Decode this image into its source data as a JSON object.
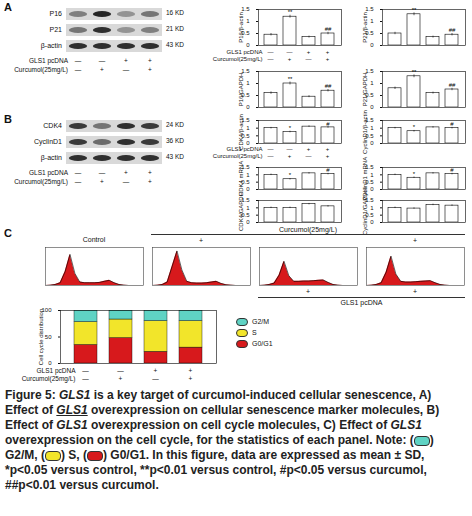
{
  "chart_data": [
    {
      "type": "bar",
      "y_label": "P16/β-actin",
      "categories": [
        null,
        null,
        null,
        null
      ],
      "values": [
        0.45,
        1.2,
        0.35,
        0.5
      ],
      "errors": [
        0.05,
        0.06,
        0.04,
        0.05
      ],
      "annotations": [
        null,
        "**",
        null,
        "##"
      ],
      "color": "#ffffff",
      "ylim": [
        0,
        1.5
      ],
      "yticks": [
        0,
        0.5,
        1,
        1.5
      ],
      "tick_labels": "y"
    },
    {
      "type": "bar",
      "y_label": "P21/β-actin",
      "categories": [
        null,
        null,
        null,
        null
      ],
      "values": [
        0.5,
        1.3,
        0.35,
        0.45
      ],
      "errors": [
        0.05,
        0.06,
        0.04,
        0.05
      ],
      "annotations": [
        null,
        "**",
        null,
        "##"
      ],
      "color": "#ffffff",
      "ylim": [
        0,
        1.5
      ],
      "yticks": [
        0,
        0.5,
        1,
        1.5
      ],
      "tick_labels": "y"
    },
    {
      "type": "bar",
      "y_label": "P16/GAPDH",
      "categories": [
        null,
        null,
        null,
        null
      ],
      "values": [
        0.6,
        1.0,
        0.45,
        0.7
      ],
      "errors": [
        0.05,
        0.06,
        0.04,
        0.05
      ],
      "annotations": [
        null,
        "**",
        null,
        "##"
      ],
      "color": "#ffffff",
      "ylim": [
        0,
        1.5
      ],
      "yticks": [
        0,
        0.5,
        1,
        1.5
      ],
      "tick_labels": "y"
    },
    {
      "type": "bar",
      "y_label": "P21/GAPDH",
      "categories": [
        null,
        null,
        null,
        null
      ],
      "values": [
        0.8,
        1.3,
        0.6,
        0.75
      ],
      "errors": [
        0.05,
        0.06,
        0.04,
        0.05
      ],
      "annotations": [
        null,
        "**",
        null,
        "##"
      ],
      "color": "#ffffff",
      "ylim": [
        0,
        1.5
      ],
      "yticks": [
        0,
        0.5,
        1,
        1.5
      ],
      "tick_labels": "y"
    },
    {
      "type": "bar",
      "y_label": "CDK4/β-actin",
      "categories": [
        null,
        null,
        null,
        null
      ],
      "values": [
        1.0,
        0.75,
        1.1,
        1.05
      ],
      "errors": [
        0.05,
        0.05,
        0.05,
        0.05
      ],
      "annotations": [
        null,
        "*",
        null,
        "#"
      ],
      "color": "#ffffff",
      "ylim": [
        0,
        1.5
      ],
      "yticks": [
        0,
        0.5,
        1,
        1.5
      ],
      "tick_labels": "y"
    },
    {
      "type": "bar",
      "y_label": "CyclinD1/β-actin",
      "categories": [
        null,
        null,
        null,
        null
      ],
      "values": [
        1.0,
        0.8,
        1.05,
        1.0
      ],
      "errors": [
        0.05,
        0.05,
        0.05,
        0.05
      ],
      "annotations": [
        null,
        "*",
        null,
        "#"
      ],
      "color": "#ffffff",
      "ylim": [
        0,
        1.5
      ],
      "yticks": [
        0,
        0.5,
        1,
        1.5
      ],
      "tick_labels": "y"
    },
    {
      "type": "bar",
      "y_label": "CDK4 mRNA",
      "categories": [
        null,
        null,
        null,
        null
      ],
      "values": [
        1.0,
        0.7,
        1.1,
        1.05
      ],
      "errors": [
        0.05,
        0.05,
        0.05,
        0.05
      ],
      "annotations": [
        null,
        "*",
        null,
        "#"
      ],
      "color": "#ffffff",
      "ylim": [
        0,
        1.5
      ],
      "yticks": [
        0,
        0.5,
        1,
        1.5
      ],
      "tick_labels": "y"
    },
    {
      "type": "bar",
      "y_label": "CyclinD1 mRNA",
      "categories": [
        null,
        null,
        null,
        null
      ],
      "values": [
        1.0,
        0.8,
        1.1,
        1.05
      ],
      "errors": [
        0.05,
        0.05,
        0.05,
        0.05
      ],
      "annotations": [
        null,
        "*",
        null,
        "#"
      ],
      "color": "#ffffff",
      "ylim": [
        0,
        1.5
      ],
      "yticks": [
        0,
        0.5,
        1,
        1.5
      ],
      "tick_labels": "y"
    },
    {
      "type": "bar",
      "y_label": "CDK4/GAPDH",
      "categories": [
        null,
        null,
        null,
        null
      ],
      "values": [
        1.0,
        1.0,
        1.25,
        1.1
      ],
      "errors": [
        0.05,
        0.05,
        0.05,
        0.05
      ],
      "annotations": [
        null,
        null,
        null,
        null
      ],
      "color": "#ffffff",
      "ylim": [
        0,
        1.5
      ],
      "yticks": [
        0,
        0.5,
        1,
        1.5
      ],
      "tick_labels": "y"
    },
    {
      "type": "bar",
      "y_label": "CyclinD1/GAPDH",
      "categories": [
        null,
        null,
        null,
        null
      ],
      "values": [
        1.0,
        0.95,
        1.2,
        1.15
      ],
      "errors": [
        0.05,
        0.05,
        0.05,
        0.05
      ],
      "annotations": [
        null,
        null,
        null,
        null
      ],
      "color": "#ffffff",
      "ylim": [
        0,
        1.5
      ],
      "yticks": [
        0,
        0.5,
        1,
        1.5
      ],
      "tick_labels": "y"
    },
    {
      "type": "area",
      "x": [
        0,
        10,
        20,
        30,
        40,
        50,
        60,
        70,
        80,
        90,
        100,
        110,
        120,
        130,
        140,
        150,
        160,
        170,
        180,
        190,
        200
      ],
      "values": [
        0,
        1,
        3,
        8,
        40,
        90,
        35,
        10,
        8,
        8,
        8,
        9,
        12,
        15,
        8,
        3,
        1,
        0,
        0,
        0,
        0
      ],
      "color": "#d7191c",
      "xlim": [
        0,
        200
      ],
      "ylim": [
        0,
        110
      ],
      "tick_labels": false
    },
    {
      "type": "area",
      "x": [
        0,
        10,
        20,
        30,
        40,
        50,
        60,
        70,
        80,
        90,
        100,
        110,
        120,
        130,
        140,
        150,
        160,
        170,
        180,
        190,
        200
      ],
      "values": [
        0,
        1,
        3,
        10,
        55,
        100,
        45,
        12,
        8,
        7,
        7,
        8,
        10,
        12,
        6,
        2,
        1,
        0,
        0,
        0,
        0
      ],
      "color": "#d7191c",
      "xlim": [
        0,
        200
      ],
      "ylim": [
        0,
        110
      ],
      "tick_labels": false
    },
    {
      "type": "area",
      "x": [
        0,
        10,
        20,
        30,
        40,
        50,
        60,
        70,
        80,
        90,
        100,
        110,
        120,
        130,
        140,
        150,
        160,
        170,
        180,
        190,
        200
      ],
      "values": [
        0,
        1,
        3,
        7,
        30,
        70,
        28,
        12,
        12,
        13,
        13,
        14,
        15,
        16,
        9,
        3,
        1,
        0,
        0,
        0,
        0
      ],
      "color": "#d7191c",
      "xlim": [
        0,
        200
      ],
      "ylim": [
        0,
        110
      ],
      "tick_labels": false
    },
    {
      "type": "area",
      "x": [
        0,
        10,
        20,
        30,
        40,
        50,
        60,
        70,
        80,
        90,
        100,
        110,
        120,
        130,
        140,
        150,
        160,
        170,
        180,
        190,
        200
      ],
      "values": [
        0,
        1,
        3,
        8,
        38,
        85,
        33,
        12,
        10,
        10,
        11,
        12,
        13,
        14,
        8,
        3,
        1,
        0,
        0,
        0,
        0
      ],
      "color": "#d7191c",
      "xlim": [
        0,
        200
      ],
      "ylim": [
        0,
        110
      ],
      "tick_labels": false
    },
    {
      "type": "bar",
      "stacked": true,
      "y_label": "Cell cycle distribution",
      "categories": [
        null,
        null,
        null,
        null
      ],
      "series": [
        {
          "name": "G2/M",
          "color": "#5fd3c4",
          "values": [
            22,
            17,
            20,
            20
          ]
        },
        {
          "name": "S",
          "color": "#f2e52a",
          "values": [
            43,
            35,
            58,
            50
          ]
        },
        {
          "name": "G0/G1",
          "color": "#d7191c",
          "values": [
            35,
            48,
            22,
            30
          ]
        }
      ],
      "ylim": [
        0,
        100
      ],
      "yticks": [
        0,
        50,
        100
      ],
      "legend": "right",
      "tick_labels": "y"
    }
  ],
  "panels": [
    {
      "letter": "A",
      "blot_rows": [
        {
          "label": "P16",
          "kd": "16 KD",
          "bands": [
            0.45,
            0.9,
            0.35,
            0.5
          ]
        },
        {
          "label": "P21",
          "kd": "21 KD",
          "bands": [
            0.5,
            0.85,
            0.35,
            0.45
          ]
        },
        {
          "label": "β-actin",
          "kd": "43 KD",
          "bands": [
            0.85,
            0.85,
            0.85,
            0.85
          ]
        }
      ]
    },
    {
      "letter": "B",
      "blot_rows": [
        {
          "label": "CDK4",
          "kd": "24 KD",
          "bands": [
            0.8,
            0.5,
            0.85,
            0.8
          ]
        },
        {
          "label": "CyclinD1",
          "kd": "36 KD",
          "bands": [
            0.8,
            0.55,
            0.85,
            0.8
          ]
        },
        {
          "label": "β-actin",
          "kd": "43 KD",
          "bands": [
            0.85,
            0.85,
            0.85,
            0.85
          ]
        }
      ]
    },
    {
      "letter": "C",
      "flow_header": {
        "control": "Control",
        "curcumol": {
          "label": "Curcumol(25mg/L)",
          "marks": [
            null,
            "+",
            null,
            "+"
          ]
        },
        "gls1": {
          "label": "GLS1 pcDNA",
          "marks": [
            null,
            null,
            "+",
            "+"
          ]
        }
      }
    }
  ],
  "treatments": [
    {
      "label": "GLS1 pcDNA",
      "marks": [
        "—",
        "—",
        "+",
        "+"
      ]
    },
    {
      "label": "Curcumol(25mg/L)",
      "marks": [
        "—",
        "+",
        "—",
        "+"
      ]
    }
  ],
  "caption": [
    {
      "text": "Figure 5: "
    },
    {
      "text": "GLS1",
      "italic": true
    },
    {
      "text": " is a key target of curcumol-induced cellular senescence, A) Effect of "
    },
    {
      "text": "GLS1",
      "italic": true,
      "underline": true
    },
    {
      "text": " overexpression on cellular senescence marker molecules, B) Effect of "
    },
    {
      "text": "GLS1",
      "italic": true
    },
    {
      "text": " overexpression on cell cycle molecules, C) Effect of "
    },
    {
      "text": "GLS1",
      "italic": true
    },
    {
      "text": " overexpression on the cell cycle, for the statistics of each panel. Note: ("
    },
    {
      "swatch": "G2/M"
    },
    {
      "text": ") G2/M, ("
    },
    {
      "swatch": "S"
    },
    {
      "text": ") S, ("
    },
    {
      "swatch": "G0/G1"
    },
    {
      "text": ") G0/G1. In this figure, data are expressed as mean ± SD, *p<0.05 versus control, **p<0.01 versus control, #p<0.05 versus curcumol, ##p<0.01 versus curcumol."
    }
  ]
}
